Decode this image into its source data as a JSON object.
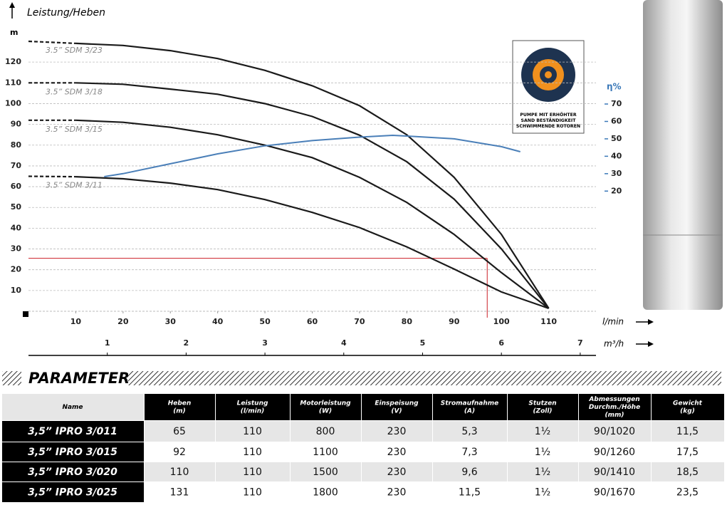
{
  "chart_data": {
    "type": "line",
    "title": "Leistung/Heben",
    "y_label": "m",
    "x_label": "l/min",
    "x2_label": "m³/h",
    "y2_label": "η%",
    "xlim": [
      0,
      120
    ],
    "xticks": [
      10,
      20,
      30,
      40,
      50,
      60,
      70,
      80,
      90,
      100,
      110
    ],
    "x2lim": [
      0,
      7.2
    ],
    "x2ticks": [
      1,
      2,
      3,
      4,
      5,
      6,
      7
    ],
    "ylim": [
      0,
      130
    ],
    "yticks": [
      10,
      20,
      30,
      40,
      50,
      60,
      70,
      80,
      90,
      100,
      110,
      120
    ],
    "y2lim": [
      -49,
      106
    ],
    "y2ticks": [
      20,
      30,
      40,
      50,
      60,
      70
    ],
    "grid": true,
    "x": [
      0,
      10,
      20,
      30,
      40,
      50,
      60,
      70,
      80,
      90,
      100,
      110
    ],
    "series": [
      {
        "name": "3.5” SDM 3/23",
        "color": "#1a1a1a",
        "values": [
          130,
          129,
          128,
          125.5,
          121.7,
          116,
          108.6,
          99,
          85,
          64.5,
          37,
          1.4
        ]
      },
      {
        "name": "3.5” SDM 3/18",
        "color": "#1a1a1a",
        "values": [
          110,
          110,
          109.3,
          107,
          104.5,
          100,
          93.8,
          84.8,
          72,
          54,
          30,
          1.4
        ]
      },
      {
        "name": "3.5” SDM 3/15",
        "color": "#1a1a1a",
        "values": [
          92,
          92,
          91,
          88.6,
          85,
          80,
          74,
          64.5,
          52.4,
          37,
          18.6,
          1.4
        ]
      },
      {
        "name": "3.5” SDM 3/11",
        "color": "#1a1a1a",
        "values": [
          65,
          64.8,
          63.8,
          61.7,
          58.6,
          53.8,
          47.6,
          40.3,
          31,
          20.3,
          9.3,
          1.4
        ]
      },
      {
        "color": "#4a7fb8",
        "axis": "y2",
        "x": [
          16,
          20,
          30,
          40,
          50,
          60,
          70,
          77,
          80,
          90,
          100,
          104
        ],
        "values": [
          28.3,
          30,
          35.7,
          41.4,
          46,
          49,
          51,
          52,
          51.6,
          50,
          45.5,
          42.6
        ]
      }
    ],
    "operating_point": {
      "x": 97,
      "y": 25.5,
      "color": "#cc1f27"
    },
    "badge": {
      "lines": [
        "PUMPE MIT ERHÖHTER",
        "SAND BESTÄNDIGKEIT",
        "SCHWIMMENDE ROTOREN"
      ]
    }
  },
  "table": {
    "title": "PARAMETER",
    "header": [
      [
        "Name"
      ],
      [
        "Heben",
        "(m)"
      ],
      [
        "Leistung",
        "(l/min)"
      ],
      [
        "Motorleistung",
        "(W)"
      ],
      [
        "Einspeisung",
        "(V)"
      ],
      [
        "Stromaufnahme",
        "(A)"
      ],
      [
        "Stutzen",
        "(Zoll)"
      ],
      [
        "Abmessungen",
        "Durchm./Höhe",
        "(mm)"
      ],
      [
        "Gewicht",
        "(kg)"
      ]
    ],
    "rows": [
      [
        "3,5” IPRO 3/011",
        "65",
        "110",
        "800",
        "230",
        "5,3",
        "1½",
        "90/1020",
        "11,5"
      ],
      [
        "3,5” IPRO 3/015",
        "92",
        "110",
        "1100",
        "230",
        "7,3",
        "1½",
        "90/1260",
        "17,5"
      ],
      [
        "3,5” IPRO 3/020",
        "110",
        "110",
        "1500",
        "230",
        "9,6",
        "1½",
        "90/1410",
        "18,5"
      ],
      [
        "3,5” IPRO 3/025",
        "131",
        "110",
        "1800",
        "230",
        "11,5",
        "1½",
        "90/1670",
        "23,5"
      ]
    ]
  }
}
